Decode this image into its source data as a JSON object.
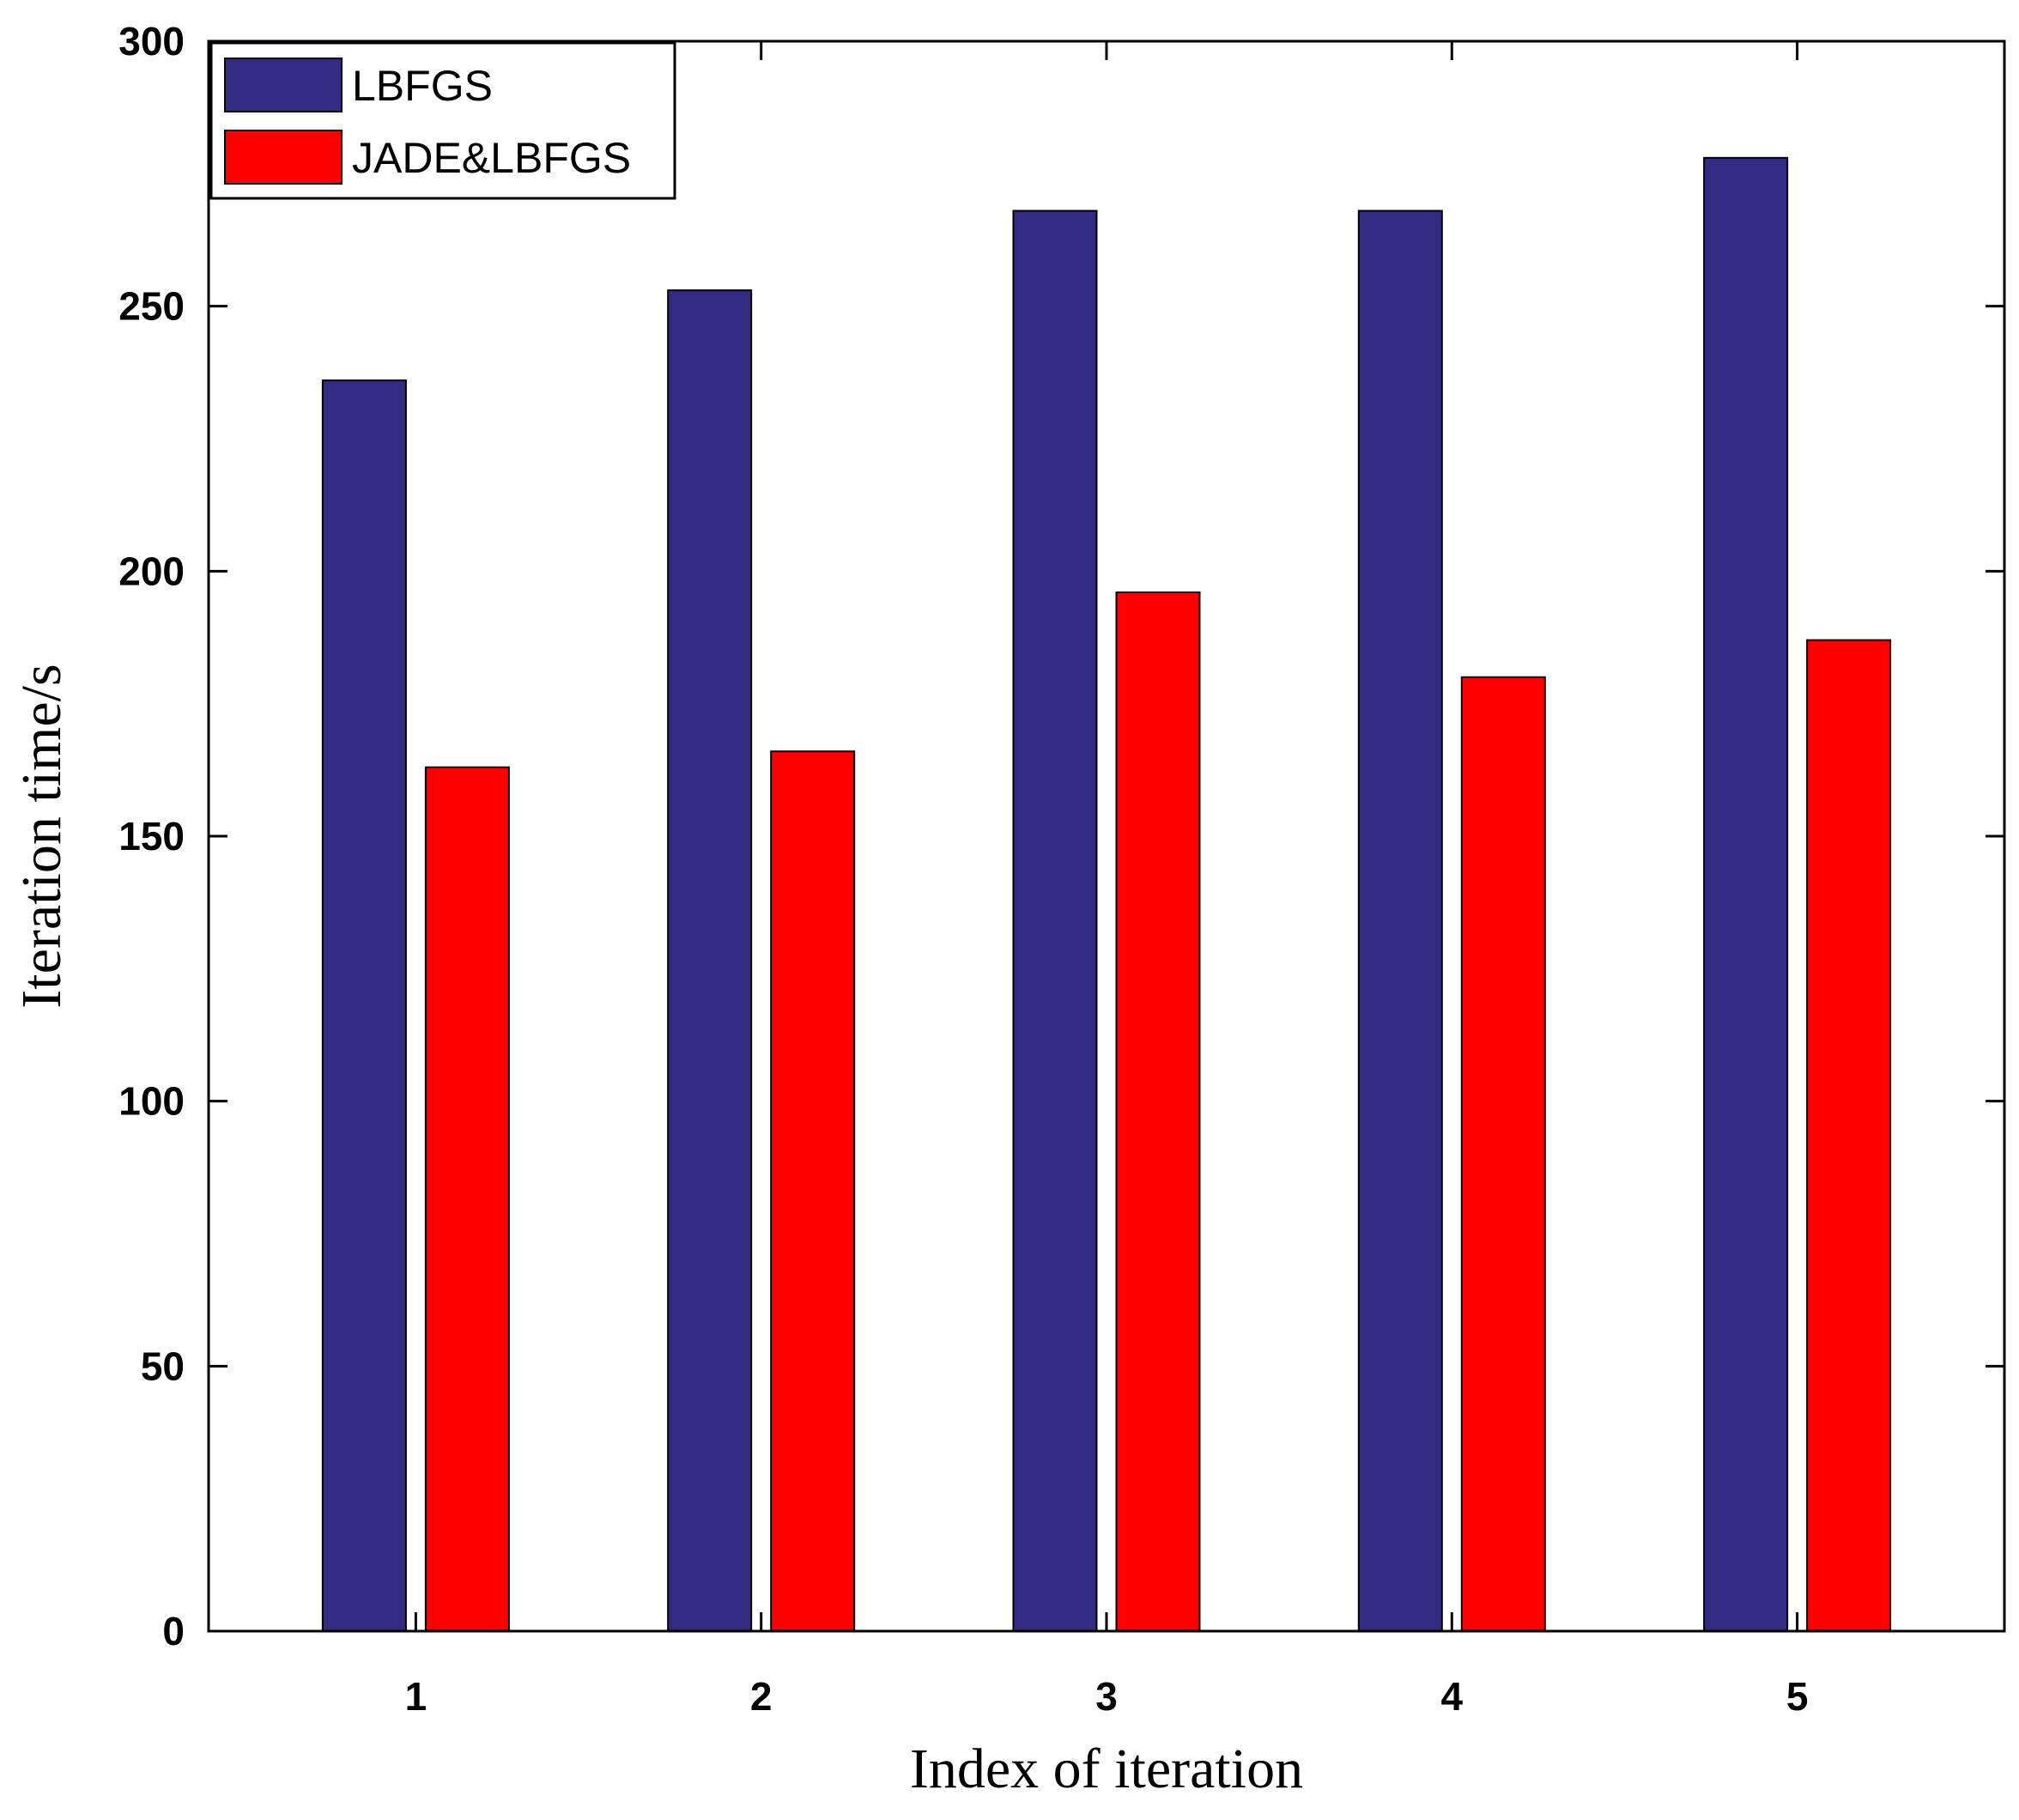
{
  "chart_data": {
    "type": "bar",
    "title": "",
    "xlabel": "Index of iteration",
    "ylabel": "Iteration time/s",
    "categories": [
      "1",
      "2",
      "3",
      "4",
      "5"
    ],
    "series": [
      {
        "name": "LBFGS",
        "color": "#332a82",
        "values": [
          236,
          253,
          268,
          268,
          278
        ]
      },
      {
        "name": "JADE&LBFGS",
        "color": "#ff0000",
        "values": [
          163,
          166,
          196,
          180,
          187
        ]
      }
    ],
    "ylim": [
      0,
      300
    ],
    "yticks": [
      0,
      50,
      100,
      150,
      200,
      250,
      300
    ],
    "grid": false,
    "legend_position": "top-left"
  }
}
